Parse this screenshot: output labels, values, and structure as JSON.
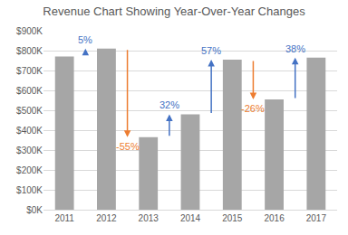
{
  "chart_data": {
    "type": "bar",
    "title": "Revenue Chart Showing Year-Over-Year Changes",
    "categories": [
      "2011",
      "2012",
      "2013",
      "2014",
      "2015",
      "2016",
      "2017"
    ],
    "values": [
      770,
      810,
      365,
      480,
      755,
      555,
      765
    ],
    "color": "#a6a6a6",
    "ylim": [
      0,
      900
    ],
    "yticks": [
      {
        "value": 0,
        "label": "$0K"
      },
      {
        "value": 100,
        "label": "$100K"
      },
      {
        "value": 200,
        "label": "$200K"
      },
      {
        "value": 300,
        "label": "$300K"
      },
      {
        "value": 400,
        "label": "$400K"
      },
      {
        "value": 500,
        "label": "$500K"
      },
      {
        "value": 600,
        "label": "$600K"
      },
      {
        "value": 700,
        "label": "$700K"
      },
      {
        "value": 800,
        "label": "$800K"
      },
      {
        "value": 900,
        "label": "$900K"
      }
    ],
    "grid": true,
    "changes": {
      "values": [
        5,
        -55,
        32,
        57,
        -26,
        38
      ],
      "value_labels": [
        "5%",
        "-55%",
        "32%",
        "57%",
        "-26%",
        "38%"
      ],
      "colors": [
        "#4472c4",
        "#ed7d31",
        "#4472c4",
        "#4472c4",
        "#ed7d31",
        "#4472c4"
      ]
    }
  }
}
